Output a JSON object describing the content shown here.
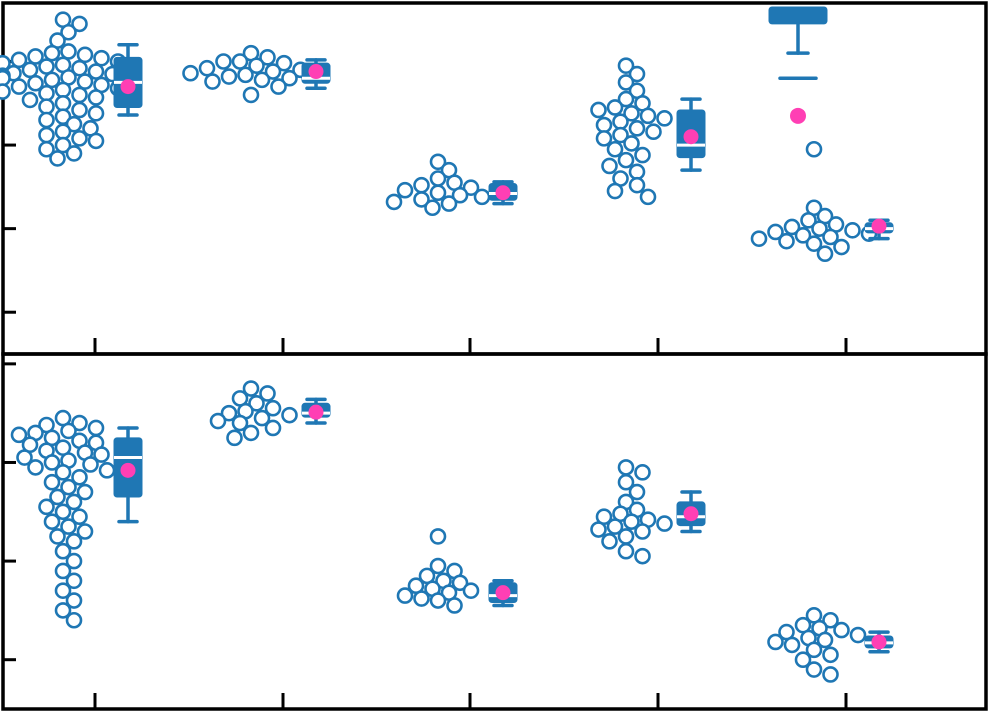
{
  "colors": {
    "points_edge": "#1f77b4",
    "box_fill": "#1f77b4",
    "median_line": "#ffffff",
    "mean_marker": "#ff3fb4",
    "axes": "#000000"
  },
  "chart_data": [
    {
      "type": "box",
      "title": "",
      "xlabel": "",
      "ylabel": "",
      "ylim": [
        0.0,
        4.2
      ],
      "yticks": [
        0.5,
        1.5,
        2.5,
        3.5
      ],
      "ytick_labels": [],
      "categories": [
        "1",
        "2",
        "3",
        "4",
        "5"
      ],
      "xtick_labels": [],
      "legend": "none",
      "grid": false,
      "groups": [
        {
          "points": [
            4.0,
            3.95,
            3.85,
            3.75,
            3.62,
            3.6,
            3.58,
            3.56,
            3.54,
            3.52,
            3.5,
            3.48,
            3.46,
            3.44,
            3.42,
            3.4,
            3.38,
            3.36,
            3.35,
            3.33,
            3.31,
            3.3,
            3.28,
            3.26,
            3.24,
            3.22,
            3.2,
            3.18,
            3.16,
            3.14,
            3.12,
            3.1,
            3.07,
            3.04,
            3.0,
            2.96,
            2.92,
            2.88,
            2.84,
            2.8,
            2.75,
            2.7,
            2.66,
            2.62,
            2.58,
            2.55,
            2.5,
            2.45,
            2.4,
            2.34
          ],
          "min": 2.86,
          "q1": 2.95,
          "median": 3.25,
          "q3": 3.55,
          "max": 3.7,
          "mean": 3.2
        },
        {
          "points": [
            3.6,
            3.55,
            3.5,
            3.5,
            3.48,
            3.45,
            3.42,
            3.4,
            3.38,
            3.36,
            3.34,
            3.32,
            3.3,
            3.28,
            3.26,
            3.2,
            3.1
          ],
          "min": 3.18,
          "q1": 3.24,
          "median": 3.3,
          "q3": 3.48,
          "max": 3.52,
          "mean": 3.38
        },
        {
          "points": [
            2.3,
            2.2,
            2.1,
            2.05,
            2.02,
            1.99,
            1.96,
            1.93,
            1.9,
            1.88,
            1.85,
            1.82,
            1.8,
            1.75
          ],
          "min": 1.8,
          "q1": 1.84,
          "median": 1.92,
          "q3": 2.04,
          "max": 2.06,
          "mean": 1.93
        },
        {
          "points": [
            3.45,
            3.35,
            3.25,
            3.15,
            3.05,
            3.0,
            2.95,
            2.92,
            2.88,
            2.85,
            2.82,
            2.78,
            2.74,
            2.7,
            2.66,
            2.62,
            2.58,
            2.52,
            2.45,
            2.38,
            2.32,
            2.25,
            2.18,
            2.1,
            2.02,
            1.95,
            1.88
          ],
          "min": 2.2,
          "q1": 2.35,
          "median": 2.5,
          "q3": 2.92,
          "max": 3.05,
          "mean": 2.6
        },
        {
          "points": [
            1.75,
            1.65,
            1.6,
            1.55,
            1.52,
            1.5,
            1.48,
            1.46,
            1.44,
            1.42,
            1.4,
            1.38,
            1.35,
            1.32,
            1.28,
            1.2,
            2.45
          ],
          "min": 1.38,
          "q1": 1.45,
          "median": 1.5,
          "q3": 1.57,
          "max": 1.6,
          "mean": 1.53,
          "upper_box": {
            "q1": 3.95,
            "q3": 4.25,
            "whisker_end": 3.6,
            "extra_cap": 3.3
          },
          "upper_mean": 2.85
        }
      ]
    },
    {
      "type": "box",
      "title": "",
      "xlabel": "",
      "ylabel": "",
      "ylim": [
        0.0,
        3.6
      ],
      "yticks": [
        0.5,
        1.5,
        2.5,
        3.5
      ],
      "ytick_labels": [],
      "categories": [
        "1",
        "2",
        "3",
        "4",
        "5"
      ],
      "xtick_labels": [],
      "legend": "none",
      "grid": false,
      "groups": [
        {
          "points": [
            2.95,
            2.9,
            2.88,
            2.85,
            2.82,
            2.8,
            2.78,
            2.75,
            2.72,
            2.7,
            2.68,
            2.65,
            2.62,
            2.6,
            2.58,
            2.55,
            2.52,
            2.5,
            2.48,
            2.45,
            2.42,
            2.4,
            2.35,
            2.3,
            2.25,
            2.2,
            2.15,
            2.1,
            2.05,
            2.0,
            1.95,
            1.9,
            1.85,
            1.8,
            1.75,
            1.7,
            1.6,
            1.5,
            1.4,
            1.3,
            1.2,
            1.1,
            1.0,
            0.9
          ],
          "min": 1.9,
          "q1": 2.15,
          "median": 2.55,
          "q3": 2.75,
          "max": 2.85,
          "mean": 2.42
        },
        {
          "points": [
            3.25,
            3.2,
            3.15,
            3.1,
            3.05,
            3.02,
            3.0,
            2.98,
            2.95,
            2.92,
            2.9,
            2.85,
            2.8,
            2.75
          ],
          "min": 2.9,
          "q1": 2.96,
          "median": 3.0,
          "q3": 3.1,
          "max": 3.14,
          "mean": 3.01
        },
        {
          "points": [
            1.75,
            1.45,
            1.4,
            1.35,
            1.3,
            1.28,
            1.25,
            1.22,
            1.2,
            1.18,
            1.15,
            1.12,
            1.1,
            1.05
          ],
          "min": 1.05,
          "q1": 1.08,
          "median": 1.15,
          "q3": 1.28,
          "max": 1.3,
          "mean": 1.18
        },
        {
          "points": [
            2.45,
            2.4,
            2.3,
            2.2,
            2.1,
            2.02,
            1.98,
            1.95,
            1.92,
            1.9,
            1.88,
            1.85,
            1.82,
            1.8,
            1.75,
            1.7,
            1.6,
            1.55
          ],
          "min": 1.8,
          "q1": 1.86,
          "median": 1.95,
          "q3": 2.1,
          "max": 2.2,
          "mean": 1.98
        },
        {
          "points": [
            0.95,
            0.9,
            0.85,
            0.82,
            0.8,
            0.78,
            0.75,
            0.72,
            0.7,
            0.68,
            0.65,
            0.6,
            0.55,
            0.5,
            0.4,
            0.35
          ],
          "min": 0.58,
          "q1": 0.62,
          "median": 0.67,
          "q3": 0.74,
          "max": 0.78,
          "mean": 0.68
        }
      ]
    }
  ]
}
